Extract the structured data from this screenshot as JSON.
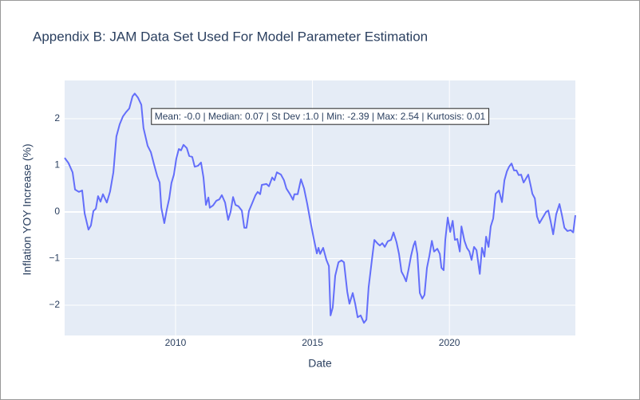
{
  "chart_data": {
    "type": "line",
    "title": "Appendix B: JAM Data Set Used For Model Parameter Estimation",
    "xlabel": "Date",
    "ylabel": "Inflation YOY Increase (%)",
    "annotation": "Mean: -0.0 | Median: 0.07 | St Dev :1.0 | Min: -2.39 | Max: 2.54 | Kurtosis: 0.01",
    "xlim": [
      2005.95,
      2024.6
    ],
    "ylim": [
      -2.65,
      2.82
    ],
    "xticks": [
      2010,
      2015,
      2020
    ],
    "yticks": [
      {
        "value": -2,
        "label": "−2"
      },
      {
        "value": -1,
        "label": "−1"
      },
      0,
      1,
      2
    ],
    "grid": true,
    "series": [
      {
        "color": "#636efa",
        "x": [
          2005.95,
          2006.09,
          2006.24,
          2006.33,
          2006.47,
          2006.59,
          2006.68,
          2006.82,
          2006.91,
          2007.0,
          2007.09,
          2007.17,
          2007.26,
          2007.35,
          2007.49,
          2007.61,
          2007.73,
          2007.84,
          2007.96,
          2008.08,
          2008.19,
          2008.31,
          2008.43,
          2008.51,
          2008.63,
          2008.75,
          2008.83,
          2008.98,
          2009.1,
          2009.21,
          2009.33,
          2009.42,
          2009.48,
          2009.59,
          2009.68,
          2009.77,
          2009.85,
          2009.94,
          2010.03,
          2010.12,
          2010.2,
          2010.29,
          2010.41,
          2010.5,
          2010.61,
          2010.7,
          2010.82,
          2010.93,
          2011.02,
          2011.11,
          2011.2,
          2011.25,
          2011.37,
          2011.49,
          2011.6,
          2011.69,
          2011.81,
          2011.92,
          2012.01,
          2012.1,
          2012.19,
          2012.3,
          2012.42,
          2012.51,
          2012.59,
          2012.68,
          2012.8,
          2012.92,
          2013.0,
          2013.09,
          2013.15,
          2013.32,
          2013.41,
          2013.53,
          2013.61,
          2013.7,
          2013.85,
          2013.96,
          2014.05,
          2014.17,
          2014.29,
          2014.34,
          2014.46,
          2014.58,
          2014.69,
          2014.81,
          2014.93,
          2015.04,
          2015.16,
          2015.22,
          2015.28,
          2015.39,
          2015.51,
          2015.6,
          2015.66,
          2015.74,
          2015.83,
          2015.95,
          2016.06,
          2016.15,
          2016.27,
          2016.35,
          2016.47,
          2016.56,
          2016.65,
          2016.76,
          2016.88,
          2016.97,
          2017.05,
          2017.17,
          2017.26,
          2017.38,
          2017.46,
          2017.55,
          2017.64,
          2017.75,
          2017.87,
          2017.96,
          2018.07,
          2018.16,
          2018.25,
          2018.34,
          2018.42,
          2018.51,
          2018.6,
          2018.69,
          2018.75,
          2018.83,
          2018.92,
          2019.01,
          2019.09,
          2019.18,
          2019.27,
          2019.36,
          2019.44,
          2019.56,
          2019.65,
          2019.71,
          2019.79,
          2019.85,
          2019.94,
          2020.03,
          2020.12,
          2020.2,
          2020.29,
          2020.38,
          2020.44,
          2020.55,
          2020.64,
          2020.73,
          2020.81,
          2020.9,
          2020.99,
          2021.11,
          2021.19,
          2021.28,
          2021.34,
          2021.43,
          2021.51,
          2021.6,
          2021.69,
          2021.81,
          2021.92,
          2022.01,
          2022.1,
          2022.18,
          2022.27,
          2022.36,
          2022.45,
          2022.53,
          2022.62,
          2022.71,
          2022.8,
          2022.88,
          2022.97,
          2023.03,
          2023.12,
          2023.2,
          2023.29,
          2023.41,
          2023.53,
          2023.61,
          2023.7,
          2023.79,
          2023.9,
          2024.02,
          2024.11,
          2024.2,
          2024.31,
          2024.43,
          2024.52,
          2024.6
        ],
        "values": [
          1.16,
          1.05,
          0.85,
          0.48,
          0.43,
          0.46,
          -0.03,
          -0.38,
          -0.29,
          0.02,
          0.07,
          0.34,
          0.22,
          0.38,
          0.2,
          0.44,
          0.85,
          1.62,
          1.88,
          2.05,
          2.14,
          2.22,
          2.48,
          2.54,
          2.45,
          2.3,
          1.8,
          1.42,
          1.28,
          1.03,
          0.77,
          0.63,
          0.09,
          -0.24,
          0.05,
          0.29,
          0.62,
          0.8,
          1.15,
          1.35,
          1.32,
          1.44,
          1.37,
          1.2,
          1.18,
          0.97,
          0.99,
          1.06,
          0.74,
          0.15,
          0.31,
          0.09,
          0.14,
          0.24,
          0.27,
          0.36,
          0.2,
          -0.17,
          0,
          0.32,
          0.15,
          0.12,
          0.03,
          -0.34,
          -0.34,
          0.02,
          0.19,
          0.36,
          0.43,
          0.38,
          0.58,
          0.6,
          0.55,
          0.74,
          0.68,
          0.85,
          0.8,
          0.68,
          0.5,
          0.39,
          0.26,
          0.38,
          0.38,
          0.7,
          0.51,
          0.17,
          -0.22,
          -0.55,
          -0.89,
          -0.77,
          -0.9,
          -0.77,
          -1.03,
          -1.16,
          -2.22,
          -2.05,
          -1.37,
          -1.08,
          -1.04,
          -1.08,
          -1.71,
          -1.97,
          -1.74,
          -1.97,
          -2.26,
          -2.22,
          -2.38,
          -2.31,
          -1.62,
          -1.03,
          -0.6,
          -0.68,
          -0.72,
          -0.67,
          -0.75,
          -0.63,
          -0.6,
          -0.44,
          -0.65,
          -0.9,
          -1.28,
          -1.38,
          -1.49,
          -1.23,
          -0.94,
          -0.72,
          -0.63,
          -0.9,
          -1.74,
          -1.86,
          -1.78,
          -1.2,
          -0.94,
          -0.62,
          -0.85,
          -0.79,
          -0.9,
          -1.2,
          -1.25,
          -0.6,
          -0.12,
          -0.43,
          -0.19,
          -0.6,
          -0.58,
          -0.85,
          -0.31,
          -0.62,
          -0.77,
          -0.85,
          -1.03,
          -0.75,
          -0.82,
          -1.33,
          -0.77,
          -0.96,
          -0.53,
          -0.75,
          -0.31,
          -0.14,
          0.39,
          0.46,
          0.21,
          0.68,
          0.87,
          0.97,
          1.04,
          0.89,
          0.89,
          0.79,
          0.8,
          0.63,
          0.72,
          0.8,
          0.56,
          0.39,
          0.29,
          -0.1,
          -0.24,
          -0.12,
          0,
          0.03,
          -0.21,
          -0.48,
          -0.05,
          0.17,
          -0.07,
          -0.34,
          -0.41,
          -0.39,
          -0.44,
          -0.07
        ]
      }
    ]
  }
}
